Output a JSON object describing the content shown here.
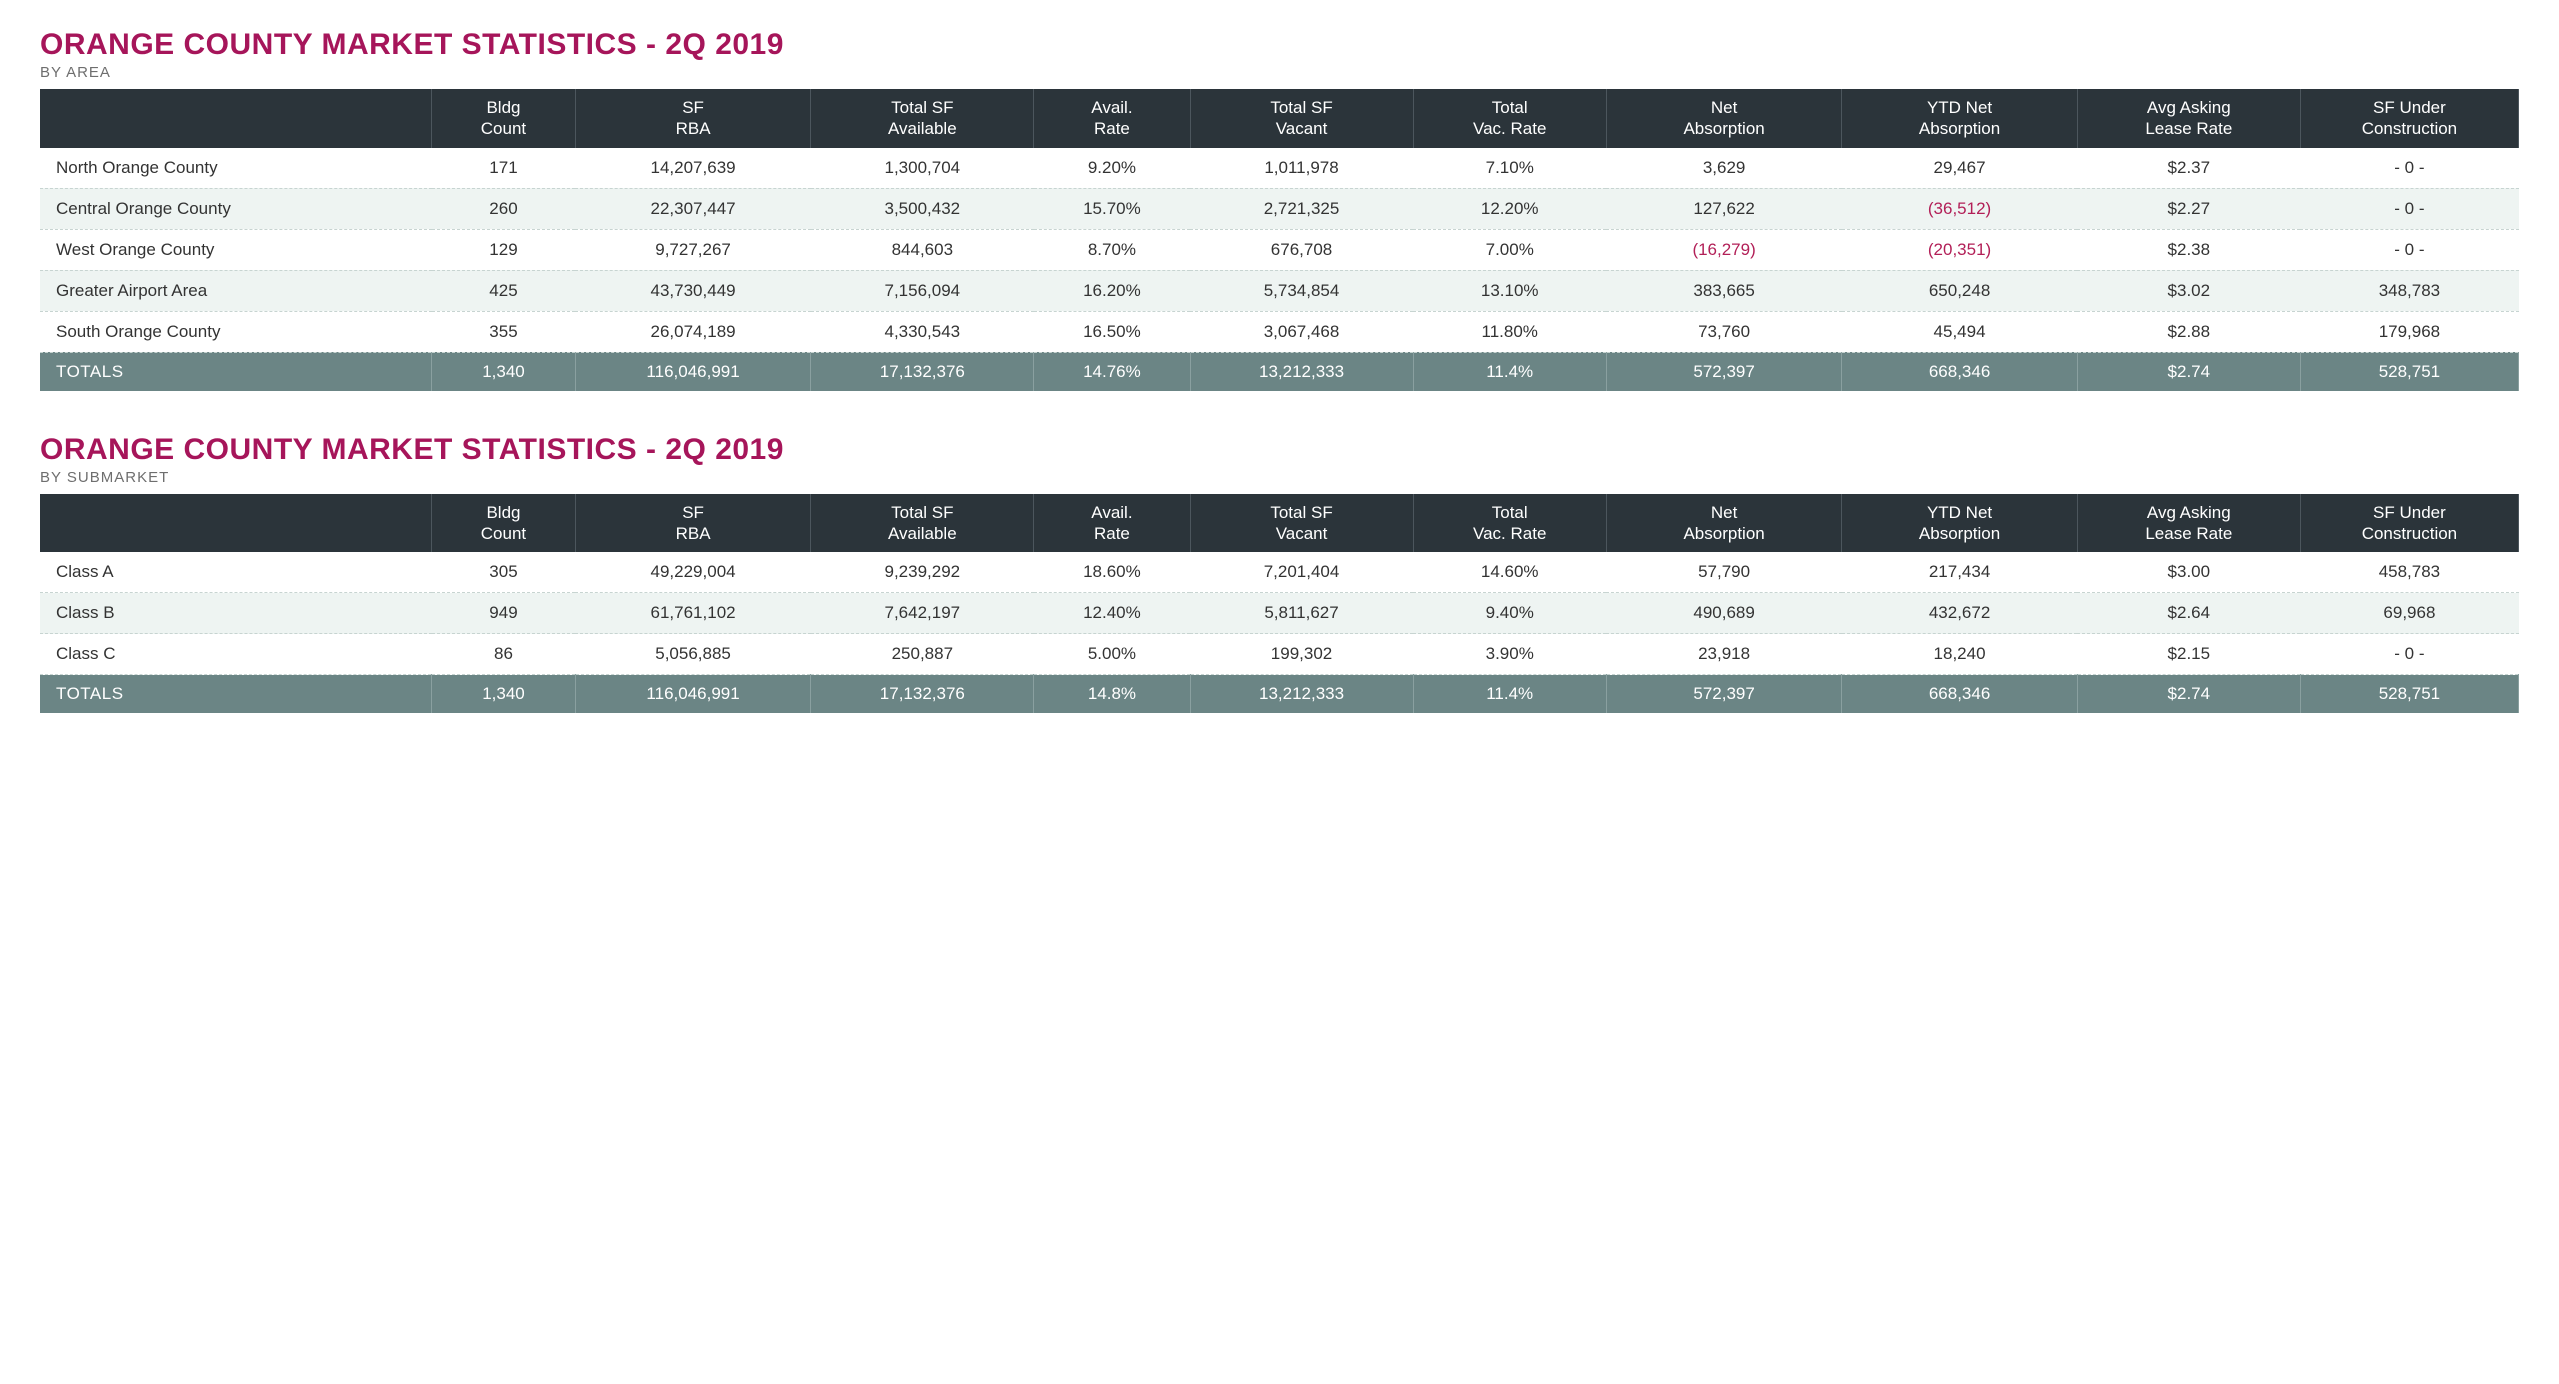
{
  "colors": {
    "title": "#a6155a",
    "header_bg": "#2b343a",
    "header_border": "#4c565d",
    "row_alt_bg": "#eef4f2",
    "row_bg": "#ffffff",
    "totals_bg": "#6b8585",
    "totals_border": "#8aa0a0",
    "dashed_border": "#c7d4d1",
    "negative": "#b21f57",
    "subtitle": "#6e6e6e",
    "text": "#333333"
  },
  "columns": [
    "",
    "Bldg\nCount",
    "SF\nRBA",
    "Total SF\nAvailable",
    "Avail.\nRate",
    "Total SF\nVacant",
    "Total\nVac. Rate",
    "Net\nAbsorption",
    "YTD Net\nAbsorption",
    "Avg Asking\nLease Rate",
    "SF Under\nConstruction"
  ],
  "column_widths_pct": [
    15.8,
    5.8,
    9.5,
    9.0,
    6.3,
    9.0,
    7.8,
    9.5,
    9.5,
    9.0,
    9.8
  ],
  "tables": [
    {
      "title": "ORANGE COUNTY MARKET STATISTICS - 2Q 2019",
      "subtitle": "BY AREA",
      "rows": [
        {
          "label": "North Orange County",
          "cells": [
            "171",
            "14,207,639",
            "1,300,704",
            "9.20%",
            "1,011,978",
            "7.10%",
            "3,629",
            "29,467",
            "$2.37",
            "- 0 -"
          ]
        },
        {
          "label": "Central Orange County",
          "cells": [
            "260",
            "22,307,447",
            "3,500,432",
            "15.70%",
            "2,721,325",
            "12.20%",
            "127,622",
            "(36,512)",
            "$2.27",
            "- 0 -"
          ],
          "neg_cols": [
            8
          ]
        },
        {
          "label": "West Orange County",
          "cells": [
            "129",
            "9,727,267",
            "844,603",
            "8.70%",
            "676,708",
            "7.00%",
            "(16,279)",
            "(20,351)",
            "$2.38",
            "- 0 -"
          ],
          "neg_cols": [
            7,
            8
          ]
        },
        {
          "label": "Greater Airport Area",
          "cells": [
            "425",
            "43,730,449",
            "7,156,094",
            "16.20%",
            "5,734,854",
            "13.10%",
            "383,665",
            "650,248",
            "$3.02",
            "348,783"
          ]
        },
        {
          "label": "South Orange County",
          "cells": [
            "355",
            "26,074,189",
            "4,330,543",
            "16.50%",
            "3,067,468",
            "11.80%",
            "73,760",
            "45,494",
            "$2.88",
            "179,968"
          ]
        }
      ],
      "totals": {
        "label": "TOTALS",
        "cells": [
          "1,340",
          "116,046,991",
          "17,132,376",
          "14.76%",
          "13,212,333",
          "11.4%",
          "572,397",
          "668,346",
          "$2.74",
          "528,751"
        ]
      }
    },
    {
      "title": "ORANGE COUNTY MARKET STATISTICS - 2Q 2019",
      "subtitle": "BY SUBMARKET",
      "rows": [
        {
          "label": "Class A",
          "cells": [
            "305",
            "49,229,004",
            "9,239,292",
            "18.60%",
            "7,201,404",
            "14.60%",
            "57,790",
            "217,434",
            "$3.00",
            "458,783"
          ]
        },
        {
          "label": "Class B",
          "cells": [
            "949",
            "61,761,102",
            "7,642,197",
            "12.40%",
            "5,811,627",
            "9.40%",
            "490,689",
            "432,672",
            "$2.64",
            "69,968"
          ]
        },
        {
          "label": "Class C",
          "cells": [
            "86",
            "5,056,885",
            "250,887",
            "5.00%",
            "199,302",
            "3.90%",
            "23,918",
            "18,240",
            "$2.15",
            "- 0 -"
          ]
        }
      ],
      "totals": {
        "label": "TOTALS",
        "cells": [
          "1,340",
          "116,046,991",
          "17,132,376",
          "14.8%",
          "13,212,333",
          "11.4%",
          "572,397",
          "668,346",
          "$2.74",
          "528,751"
        ]
      }
    }
  ]
}
